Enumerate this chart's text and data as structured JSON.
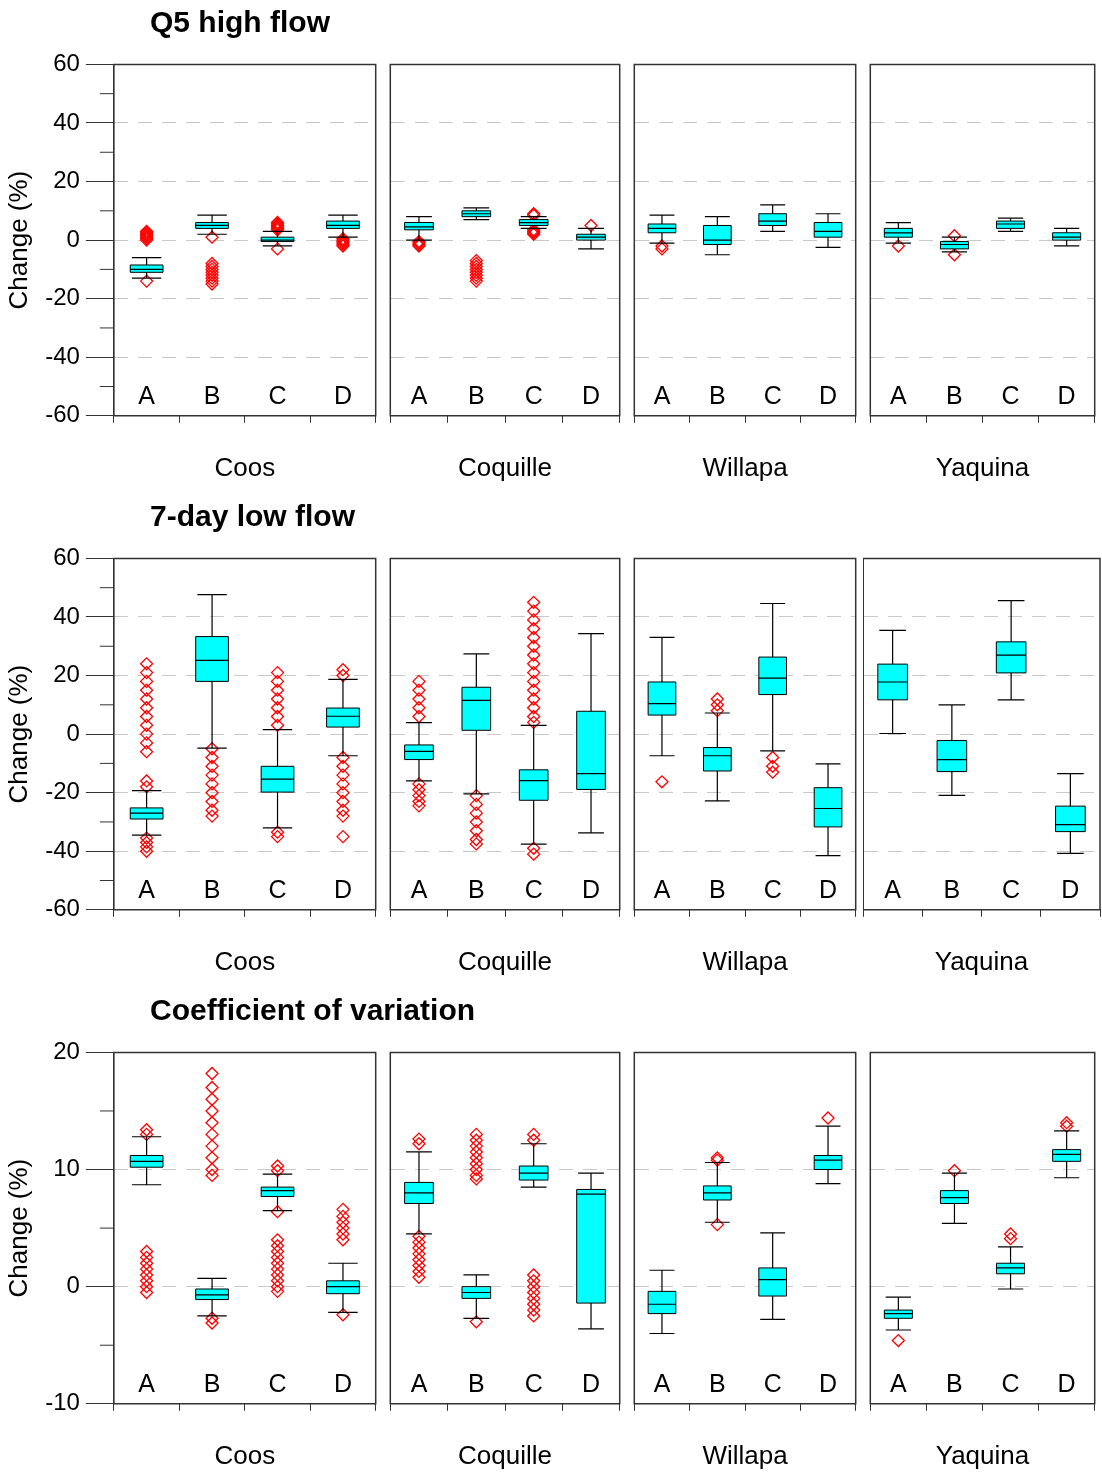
{
  "chart_data": [
    {
      "type": "box",
      "title": "Q5 high flow",
      "ylabel": "Change (%)",
      "xlabel": "Coos",
      "categories": [
        "A",
        "B",
        "C",
        "D"
      ],
      "ylim": [
        -60,
        60
      ],
      "yticks": [
        -60,
        {
          "value": -50,
          "label": null
        },
        -40,
        {
          "value": -30,
          "label": null
        },
        -20,
        {
          "value": -10,
          "label": null
        },
        0,
        {
          "value": 10,
          "label": null
        },
        20,
        {
          "value": 30,
          "label": null
        },
        40,
        {
          "value": 50,
          "label": null
        },
        60
      ],
      "grid": "y",
      "series": [
        {
          "color": "#00ffff",
          "boxes": [
            {
              "low": -13,
              "q1": -11,
              "median": -10,
              "q3": -8.5,
              "high": -6,
              "outliers": [
                -14,
                0,
                0.5,
                1,
                1.5,
                2,
                2.5,
                3
              ]
            },
            {
              "low": 2,
              "q1": 4,
              "median": 5,
              "q3": 6,
              "high": 8.5,
              "outliers": [
                1,
                -15,
                -14,
                -13,
                -12,
                -11,
                -10,
                -9,
                -8
              ]
            },
            {
              "low": -2,
              "q1": -0.5,
              "median": 0,
              "q3": 1,
              "high": 3,
              "outliers": [
                3.5,
                4,
                4.5,
                5,
                5.5,
                6,
                -3
              ]
            },
            {
              "low": 1,
              "q1": 4,
              "median": 5,
              "q3": 6.5,
              "high": 8.5,
              "outliers": [
                -2,
                -1.5,
                -1,
                -0.5,
                0,
                0.5
              ]
            }
          ]
        }
      ]
    },
    {
      "type": "box",
      "xlabel": "Coquille",
      "categories": [
        "A",
        "B",
        "C",
        "D"
      ],
      "ylim": [
        -60,
        60
      ],
      "yticks": [
        -60,
        -40,
        -20,
        0,
        20,
        40,
        60
      ],
      "grid": "y",
      "tick_labels": "x",
      "series": [
        {
          "color": "#00ffff",
          "boxes": [
            {
              "low": 0,
              "q1": 3.5,
              "median": 4.5,
              "q3": 6,
              "high": 8,
              "outliers": [
                -2,
                -1.5,
                -1,
                -0.5
              ]
            },
            {
              "low": 7,
              "q1": 8,
              "median": 9,
              "q3": 10,
              "high": 11,
              "outliers": [
                -14,
                -13,
                -12,
                -11,
                -10,
                -9,
                -8,
                -7
              ]
            },
            {
              "low": 4,
              "q1": 5,
              "median": 6,
              "q3": 7,
              "high": 8,
              "outliers": [
                9,
                8.5,
                2,
                2.5,
                3,
                3.5
              ]
            },
            {
              "low": -3,
              "q1": 0,
              "median": 1,
              "q3": 2,
              "high": 4,
              "outliers": [
                5
              ]
            }
          ]
        }
      ]
    },
    {
      "type": "box",
      "xlabel": "Willapa",
      "categories": [
        "A",
        "B",
        "C",
        "D"
      ],
      "ylim": [
        -60,
        60
      ],
      "yticks": [
        -60,
        -40,
        -20,
        0,
        20,
        40,
        60
      ],
      "grid": "y",
      "tick_labels": "x",
      "series": [
        {
          "color": "#00ffff",
          "boxes": [
            {
              "low": -1,
              "q1": 2.5,
              "median": 4,
              "q3": 5.5,
              "high": 8.5,
              "outliers": [
                -2,
                -3
              ]
            },
            {
              "low": -5,
              "q1": -1.5,
              "median": 0,
              "q3": 5,
              "high": 8
            },
            {
              "low": 3,
              "q1": 5,
              "median": 6.5,
              "q3": 9,
              "high": 12
            },
            {
              "low": -2.5,
              "q1": 1,
              "median": 3,
              "q3": 6,
              "high": 9
            }
          ]
        }
      ]
    },
    {
      "type": "box",
      "xlabel": "Yaquina",
      "categories": [
        "A",
        "B",
        "C",
        "D"
      ],
      "ylim": [
        -60,
        60
      ],
      "yticks": [
        -60,
        -40,
        -20,
        0,
        20,
        40,
        60
      ],
      "grid": "y",
      "tick_labels": "x",
      "series": [
        {
          "color": "#00ffff",
          "boxes": [
            {
              "low": -1,
              "q1": 1,
              "median": 2.5,
              "q3": 4,
              "high": 6,
              "outliers": [
                -2
              ]
            },
            {
              "low": -4,
              "q1": -3,
              "median": -1.5,
              "q3": -0.5,
              "high": 1,
              "outliers": [
                1.5,
                -5
              ]
            },
            {
              "low": 3,
              "q1": 4,
              "median": 5.5,
              "q3": 6.5,
              "high": 7.5
            },
            {
              "low": -2,
              "q1": 0,
              "median": 1,
              "q3": 2.5,
              "high": 4
            }
          ]
        }
      ]
    },
    {
      "type": "box",
      "title": "7-day low flow",
      "ylabel": "Change (%)",
      "xlabel": "Coos",
      "categories": [
        "A",
        "B",
        "C",
        "D"
      ],
      "ylim": [
        -60,
        60
      ],
      "yticks": [
        -60,
        {
          "value": -50,
          "label": null
        },
        -40,
        {
          "value": -30,
          "label": null
        },
        -20,
        {
          "value": -10,
          "label": null
        },
        0,
        {
          "value": 10,
          "label": null
        },
        20,
        {
          "value": 30,
          "label": null
        },
        40,
        {
          "value": 50,
          "label": null
        },
        60
      ],
      "grid": "y",
      "series": [
        {
          "color": "#00ffff",
          "boxes": [
            {
              "low": -34.5,
              "q1": -29,
              "median": -27,
              "q3": -25.2,
              "high": -19.3,
              "outliers": [
                24,
                21,
                18,
                15,
                12,
                9,
                6,
                3,
                0,
                -3,
                -6,
                -16,
                -18,
                -35.5,
                -37,
                -38.5,
                -40
              ]
            },
            {
              "low": -4.8,
              "q1": 18,
              "median": 25.2,
              "q3": 33.3,
              "high": 47.6,
              "outliers": [
                -5,
                -8,
                -11,
                -14,
                -17,
                -20,
                -23,
                -26,
                -28
              ]
            },
            {
              "low": -32,
              "q1": -19.8,
              "median": -15.4,
              "q3": -11,
              "high": 1.5,
              "outliers": [
                21,
                18,
                15,
                12,
                9,
                6,
                3,
                -33.5,
                -35
              ]
            },
            {
              "low": -7.4,
              "q1": 2.4,
              "median": 6.1,
              "q3": 8.9,
              "high": 18.7,
              "outliers": [
                22,
                20,
                -8,
                -11,
                -14,
                -17,
                -20,
                -23,
                -26,
                -28,
                -35
              ]
            }
          ]
        }
      ]
    },
    {
      "type": "box",
      "xlabel": "Coquille",
      "categories": [
        "A",
        "B",
        "C",
        "D"
      ],
      "ylim": [
        -60,
        60
      ],
      "yticks": [
        -60,
        -40,
        -20,
        0,
        20,
        40,
        60
      ],
      "grid": "y",
      "tick_labels": "x",
      "series": [
        {
          "color": "#00ffff",
          "boxes": [
            {
              "low": -16,
              "q1": -8.7,
              "median": -5.9,
              "q3": -3.7,
              "high": 3.9,
              "outliers": [
                18,
                15,
                12,
                9,
                6,
                -17,
                -19,
                -21,
                -23,
                -24.5
              ]
            },
            {
              "low": -20.4,
              "q1": 1.3,
              "median": 11.5,
              "q3": 16,
              "high": 27.4,
              "outliers": [
                -21,
                -24,
                -27,
                -30,
                -33,
                -36,
                -37.5
              ]
            },
            {
              "low": -37.6,
              "q1": -22.6,
              "median": -15.9,
              "q3": -12.2,
              "high": 3,
              "outliers": [
                45,
                42,
                39,
                36,
                33,
                30,
                27,
                24,
                21,
                18,
                15,
                12,
                9,
                6,
                4,
                -39,
                -41
              ]
            },
            {
              "low": -33.7,
              "q1": -18.9,
              "median": -13.5,
              "q3": 7.8,
              "high": 34.3
            }
          ]
        }
      ]
    },
    {
      "type": "box",
      "xlabel": "Willapa",
      "categories": [
        "A",
        "B",
        "C",
        "D"
      ],
      "ylim": [
        -60,
        60
      ],
      "yticks": [
        -60,
        -40,
        -20,
        0,
        20,
        40,
        60
      ],
      "grid": "y",
      "tick_labels": "x",
      "series": [
        {
          "color": "#00ffff",
          "boxes": [
            {
              "low": -7.4,
              "q1": 6.5,
              "median": 10.4,
              "q3": 17.8,
              "high": 33,
              "outliers": [
                -16.3
              ]
            },
            {
              "low": -22.8,
              "q1": -12.6,
              "median": -7.4,
              "q3": -4.6,
              "high": 7.2,
              "outliers": [
                8,
                10,
                12
              ]
            },
            {
              "low": -5.7,
              "q1": 13.5,
              "median": 19.1,
              "q3": 26.3,
              "high": 44.6,
              "outliers": [
                -8,
                -11,
                -13
              ]
            },
            {
              "low": -41.5,
              "q1": -31.7,
              "median": -25.4,
              "q3": -18.3,
              "high": -10.2
            }
          ]
        }
      ]
    },
    {
      "type": "box",
      "xlabel": "Yaquina",
      "categories": [
        "A",
        "B",
        "C",
        "D"
      ],
      "ylim": [
        -60,
        60
      ],
      "yticks": [
        -60,
        -40,
        -20,
        0,
        20,
        40,
        60
      ],
      "grid": "y",
      "tick_labels": "x",
      "series": [
        {
          "color": "#00ffff",
          "boxes": [
            {
              "low": 0.2,
              "q1": 11.7,
              "median": 17.8,
              "q3": 23.9,
              "high": 35.4
            },
            {
              "low": -20.9,
              "q1": -12.8,
              "median": -8.7,
              "q3": -2.2,
              "high": 10
            },
            {
              "low": 11.7,
              "q1": 20.9,
              "median": 27,
              "q3": 31.5,
              "high": 45.6
            },
            {
              "low": -40.7,
              "q1": -33.3,
              "median": -30.9,
              "q3": -24.6,
              "high": -13.5
            }
          ]
        }
      ]
    },
    {
      "type": "box",
      "title": "Coefficient of variation",
      "ylabel": "Change (%)",
      "xlabel": "Coos",
      "categories": [
        "A",
        "B",
        "C",
        "D"
      ],
      "ylim": [
        -10,
        20
      ],
      "yticks": [
        -10,
        {
          "value": -5,
          "label": null
        },
        0,
        {
          "value": 5,
          "label": null
        },
        10,
        {
          "value": 15,
          "label": null
        },
        20
      ],
      "grid": "y",
      "series": [
        {
          "color": "#00ffff",
          "boxes": [
            {
              "low": 8.7,
              "q1": 10.2,
              "median": 10.7,
              "q3": 11.2,
              "high": 12.8,
              "outliers": [
                13.4,
                13,
                3,
                2.5,
                2,
                1.5,
                1,
                0.5,
                0,
                -0.5
              ]
            },
            {
              "low": -2.5,
              "q1": -1.1,
              "median": -0.7,
              "q3": -0.2,
              "high": 0.7,
              "outliers": [
                18.2,
                17,
                16,
                15,
                14,
                13,
                12,
                11,
                10,
                9.5,
                -2.7,
                -3.1
              ]
            },
            {
              "low": 6.5,
              "q1": 7.7,
              "median": 8.2,
              "q3": 8.5,
              "high": 9.6,
              "outliers": [
                10.3,
                9.9,
                6.4,
                4,
                3.5,
                3,
                2.5,
                2,
                1.5,
                1,
                0.5,
                0,
                -0.4
              ]
            },
            {
              "low": -2.2,
              "q1": -0.6,
              "median": 0,
              "q3": 0.5,
              "high": 2,
              "outliers": [
                -2.4,
                6.6,
                6,
                5.5,
                5,
                4.5,
                4
              ]
            }
          ]
        }
      ]
    },
    {
      "type": "box",
      "xlabel": "Coquille",
      "categories": [
        "A",
        "B",
        "C",
        "D"
      ],
      "ylim": [
        -10,
        20
      ],
      "yticks": [
        -10,
        0,
        10,
        20
      ],
      "grid": "y",
      "tick_labels": "x",
      "series": [
        {
          "color": "#00ffff",
          "boxes": [
            {
              "low": 4.5,
              "q1": 7.1,
              "median": 8,
              "q3": 8.9,
              "high": 11.5,
              "outliers": [
                12.6,
                12.2,
                4.3,
                3.8,
                3.3,
                2.8,
                2.3,
                1.8,
                1.3,
                0.8
              ]
            },
            {
              "low": -2.7,
              "q1": -1,
              "median": -0.5,
              "q3": 0,
              "high": 1,
              "outliers": [
                -3,
                13,
                12.5,
                12,
                11.5,
                11,
                10.5,
                10,
                9.5,
                9.2
              ]
            },
            {
              "low": 8.5,
              "q1": 9.1,
              "median": 9.7,
              "q3": 10.3,
              "high": 12.2,
              "outliers": [
                13,
                12.5,
                1,
                0.5,
                0,
                -0.5,
                -1,
                -1.5,
                -2,
                -2.5
              ]
            },
            {
              "low": -3.6,
              "q1": -1.4,
              "median": 7.9,
              "q3": 8.3,
              "high": 9.7
            }
          ]
        }
      ]
    },
    {
      "type": "box",
      "xlabel": "Willapa",
      "categories": [
        "A",
        "B",
        "C",
        "D"
      ],
      "ylim": [
        -10,
        20
      ],
      "yticks": [
        -10,
        0,
        10,
        20
      ],
      "grid": "y",
      "tick_labels": "x",
      "series": [
        {
          "color": "#00ffff",
          "boxes": [
            {
              "low": -4,
              "q1": -2.3,
              "median": -1.5,
              "q3": -0.4,
              "high": 1.4
            },
            {
              "low": 5.5,
              "q1": 7.4,
              "median": 8,
              "q3": 8.6,
              "high": 10.6,
              "outliers": [
                11,
                10.8,
                5.3
              ]
            },
            {
              "low": -2.8,
              "q1": -0.8,
              "median": 0.6,
              "q3": 1.6,
              "high": 4.6
            },
            {
              "low": 8.8,
              "q1": 10,
              "median": 10.8,
              "q3": 11.2,
              "high": 13.7,
              "outliers": [
                14.4
              ]
            }
          ]
        }
      ]
    },
    {
      "type": "box",
      "xlabel": "Yaquina",
      "categories": [
        "A",
        "B",
        "C",
        "D"
      ],
      "ylim": [
        -10,
        20
      ],
      "yticks": [
        -10,
        0,
        10,
        20
      ],
      "grid": "y",
      "tick_labels": "x",
      "series": [
        {
          "color": "#00ffff",
          "boxes": [
            {
              "low": -3.7,
              "q1": -2.7,
              "median": -2.3,
              "q3": -2,
              "high": -0.9,
              "outliers": [
                -4.6
              ]
            },
            {
              "low": 5.4,
              "q1": 7.1,
              "median": 7.6,
              "q3": 8.2,
              "high": 9.7,
              "outliers": [
                9.9
              ]
            },
            {
              "low": -0.2,
              "q1": 1.1,
              "median": 1.6,
              "q3": 2,
              "high": 3.4,
              "outliers": [
                4.5,
                4.1
              ]
            },
            {
              "low": 9.3,
              "q1": 10.7,
              "median": 11.3,
              "q3": 11.7,
              "high": 13.3,
              "outliers": [
                14,
                13.7
              ]
            }
          ]
        }
      ]
    }
  ]
}
